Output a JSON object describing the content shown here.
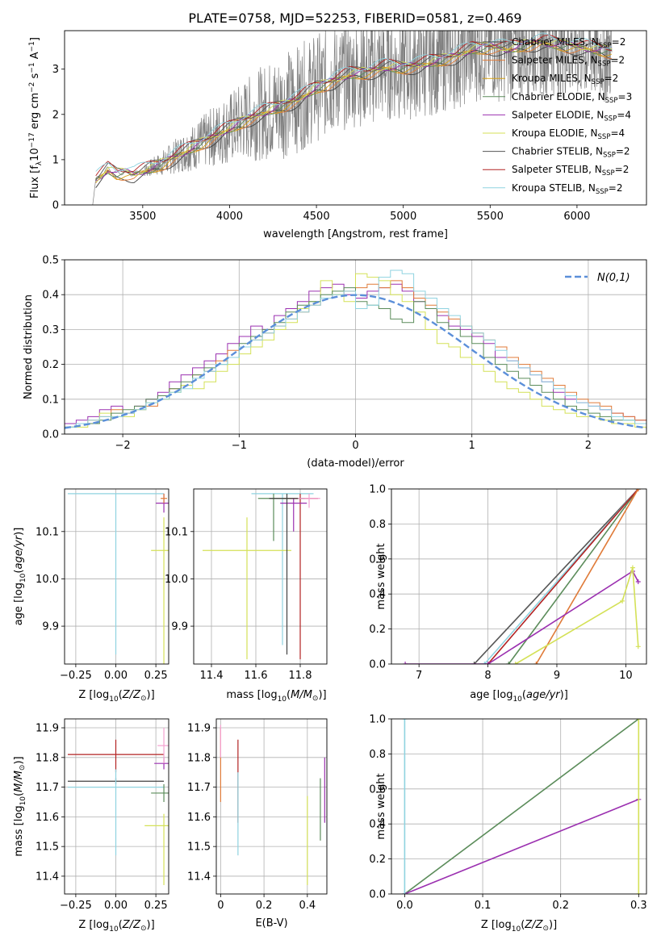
{
  "figure": {
    "title": "PLATE=0758, MJD=52253, FIBERID=0581, z=0.469"
  },
  "chart_data": [
    {
      "type": "line",
      "id": "spectrum",
      "xlabel": "wavelength [Angstrom, rest frame]",
      "ylabel": "Flux [f",
      "xlim": [
        3050,
        6400
      ],
      "ylim": [
        0,
        3.85
      ],
      "xticks": [
        3500,
        4000,
        4500,
        5000,
        5500,
        6000
      ],
      "yticks": [
        0,
        1,
        2,
        3
      ],
      "grid": false,
      "legend_position": "top-right",
      "data_envelope": {
        "x": [
          3210,
          3230,
          3260,
          3300,
          3350,
          3400,
          3450,
          3500,
          3600,
          3700,
          3800,
          3900,
          4000,
          4100,
          4200,
          4300,
          4400,
          4500,
          4600,
          4700,
          4800,
          4900,
          5000,
          5100,
          5200,
          5300,
          5400,
          5500,
          5600,
          5700,
          5800,
          5900,
          6000,
          6100,
          6200
        ],
        "y": [
          0.0,
          0.55,
          0.65,
          0.8,
          0.7,
          0.72,
          0.68,
          0.75,
          0.9,
          1.1,
          1.3,
          1.5,
          1.7,
          1.9,
          2.05,
          2.2,
          2.35,
          2.6,
          2.75,
          2.9,
          2.95,
          3.05,
          3.05,
          3.1,
          3.2,
          3.3,
          3.45,
          3.5,
          3.45,
          3.55,
          3.6,
          3.55,
          3.5,
          3.45,
          3.4
        ]
      },
      "noise_start_x": 3500,
      "models": [
        {
          "name": "Chabrier MILES, N",
          "nssp": "=2",
          "color": "#404040"
        },
        {
          "name": "Salpeter MILES, N",
          "nssp": "=2",
          "color": "#e07b39"
        },
        {
          "name": "Kroupa MILES, N",
          "nssp": "=2",
          "color": "#d4a017"
        },
        {
          "name": "Chabrier ELODIE, N",
          "nssp": "=3",
          "color": "#5b8c5a"
        },
        {
          "name": "Salpeter ELODIE, N",
          "nssp": "=4",
          "color": "#9b30b0"
        },
        {
          "name": "Kroupa ELODIE, N",
          "nssp": "=4",
          "color": "#d4e157"
        },
        {
          "name": "Chabrier STELIB, N",
          "nssp": "=2",
          "color": "#555555"
        },
        {
          "name": "Salpeter STELIB, N",
          "nssp": "=2",
          "color": "#b22222"
        },
        {
          "name": "Kroupa STELIB, N",
          "nssp": "=2",
          "color": "#8fd3e0"
        }
      ],
      "legend_sub": "SSP"
    },
    {
      "type": "line",
      "id": "residuals",
      "xlabel": "(data-model)/error",
      "ylabel": "Normed distribution",
      "xlim": [
        -2.5,
        2.5
      ],
      "ylim": [
        0,
        0.5
      ],
      "xticks": [
        -2,
        -1,
        0,
        1,
        2
      ],
      "yticks": [
        0.0,
        0.1,
        0.2,
        0.3,
        0.4,
        0.5
      ],
      "grid": true,
      "legend_position": "top-right",
      "gaussian_label": "N(0,1)",
      "gaussian_color": "#5b8fd9",
      "bin_centers": [
        -2.45,
        -2.35,
        -2.25,
        -2.15,
        -2.05,
        -1.95,
        -1.85,
        -1.75,
        -1.65,
        -1.55,
        -1.45,
        -1.35,
        -1.25,
        -1.15,
        -1.05,
        -0.95,
        -0.85,
        -0.75,
        -0.65,
        -0.55,
        -0.45,
        -0.35,
        -0.25,
        -0.15,
        -0.05,
        0.05,
        0.15,
        0.25,
        0.35,
        0.45,
        0.55,
        0.65,
        0.75,
        0.85,
        0.95,
        1.05,
        1.15,
        1.25,
        1.35,
        1.45,
        1.55,
        1.65,
        1.75,
        1.85,
        1.95,
        2.05,
        2.15,
        2.25,
        2.35,
        2.45
      ],
      "series": [
        {
          "color": "#9b30b0",
          "values": [
            0.03,
            0.04,
            0.05,
            0.07,
            0.08,
            0.06,
            0.08,
            0.1,
            0.12,
            0.15,
            0.17,
            0.19,
            0.21,
            0.23,
            0.26,
            0.28,
            0.31,
            0.3,
            0.34,
            0.36,
            0.38,
            0.41,
            0.42,
            0.43,
            0.4,
            0.39,
            0.41,
            0.42,
            0.43,
            0.41,
            0.38,
            0.36,
            0.34,
            0.31,
            0.3,
            0.28,
            0.26,
            0.22,
            0.21,
            0.19,
            0.17,
            0.15,
            0.12,
            0.1,
            0.09,
            0.08,
            0.07,
            0.06,
            0.05,
            0.04
          ]
        },
        {
          "color": "#e07b39",
          "values": [
            0.02,
            0.03,
            0.04,
            0.05,
            0.07,
            0.06,
            0.07,
            0.08,
            0.1,
            0.13,
            0.14,
            0.17,
            0.18,
            0.21,
            0.24,
            0.25,
            0.27,
            0.29,
            0.31,
            0.33,
            0.35,
            0.37,
            0.39,
            0.4,
            0.41,
            0.42,
            0.43,
            0.42,
            0.44,
            0.42,
            0.39,
            0.37,
            0.35,
            0.33,
            0.31,
            0.29,
            0.27,
            0.25,
            0.22,
            0.2,
            0.18,
            0.16,
            0.14,
            0.12,
            0.1,
            0.09,
            0.08,
            0.06,
            0.05,
            0.04
          ]
        },
        {
          "color": "#d4e157",
          "values": [
            0.02,
            0.02,
            0.03,
            0.06,
            0.05,
            0.05,
            0.07,
            0.09,
            0.1,
            0.12,
            0.14,
            0.13,
            0.15,
            0.18,
            0.2,
            0.23,
            0.25,
            0.27,
            0.3,
            0.32,
            0.36,
            0.38,
            0.44,
            0.4,
            0.38,
            0.46,
            0.45,
            0.44,
            0.4,
            0.38,
            0.35,
            0.3,
            0.26,
            0.25,
            0.22,
            0.2,
            0.18,
            0.15,
            0.13,
            0.12,
            0.1,
            0.08,
            0.07,
            0.06,
            0.05,
            0.05,
            0.04,
            0.03,
            0.03,
            0.02
          ]
        },
        {
          "color": "#5b8c5a",
          "values": [
            0.02,
            0.03,
            0.03,
            0.04,
            0.06,
            0.07,
            0.08,
            0.1,
            0.11,
            0.13,
            0.15,
            0.17,
            0.19,
            0.2,
            0.22,
            0.26,
            0.28,
            0.3,
            0.32,
            0.35,
            0.37,
            0.38,
            0.4,
            0.41,
            0.42,
            0.38,
            0.37,
            0.36,
            0.33,
            0.32,
            0.38,
            0.36,
            0.32,
            0.3,
            0.28,
            0.26,
            0.22,
            0.2,
            0.18,
            0.16,
            0.14,
            0.12,
            0.1,
            0.08,
            0.07,
            0.06,
            0.05,
            0.04,
            0.04,
            0.03
          ]
        },
        {
          "color": "#8fd3e0",
          "values": [
            0.02,
            0.03,
            0.04,
            0.05,
            0.05,
            0.06,
            0.07,
            0.09,
            0.1,
            0.12,
            0.13,
            0.16,
            0.18,
            0.2,
            0.22,
            0.25,
            0.27,
            0.29,
            0.31,
            0.33,
            0.35,
            0.37,
            0.39,
            0.4,
            0.41,
            0.36,
            0.37,
            0.45,
            0.47,
            0.46,
            0.41,
            0.39,
            0.36,
            0.34,
            0.31,
            0.29,
            0.27,
            0.24,
            0.21,
            0.19,
            0.17,
            0.15,
            0.13,
            0.11,
            0.09,
            0.08,
            0.07,
            0.05,
            0.04,
            0.03
          ]
        }
      ]
    },
    {
      "type": "scatter",
      "id": "age-vs-Z",
      "xlabel": "Z [log",
      "ylabel": "age  [log",
      "xlim": [
        -0.32,
        0.33
      ],
      "ylim": [
        9.82,
        10.19
      ],
      "xticks": [
        -0.25,
        0.0,
        0.25
      ],
      "xticklabels": [
        "−0.25",
        "0.00",
        "0.25"
      ],
      "yticks": [
        9.9,
        10.0,
        10.1
      ],
      "grid": true,
      "points": [
        {
          "x": 0.0,
          "y": 10.18,
          "xerr": 0.3,
          "yerr": [
            0.34,
            0.0
          ],
          "color": "#8fd3e0"
        },
        {
          "x": 0.3,
          "y": 10.16,
          "xerr": 0.05,
          "yerr": [
            0.02,
            0.02
          ],
          "color": "#9b30b0"
        },
        {
          "x": 0.3,
          "y": 10.06,
          "xerr": 0.08,
          "yerr": [
            0.24,
            0.07
          ],
          "color": "#d4e157"
        },
        {
          "x": 0.3,
          "y": 10.17,
          "xerr": 0.02,
          "yerr": [
            0.01,
            0.01
          ],
          "color": "#e07b39"
        }
      ]
    },
    {
      "type": "scatter",
      "id": "age-vs-mass",
      "xlabel": "mass [log",
      "ylabel": "",
      "xlim": [
        11.32,
        11.92
      ],
      "ylim": [
        9.82,
        10.19
      ],
      "xticks": [
        11.4,
        11.6,
        11.8
      ],
      "yticks": [
        9.9,
        10.0,
        10.1
      ],
      "grid": true,
      "points": [
        {
          "x": 11.72,
          "y": 10.18,
          "xerr": 0.14,
          "yerr": [
            0.32,
            0.0
          ],
          "color": "#8fd3e0"
        },
        {
          "x": 11.56,
          "y": 10.06,
          "xerr": 0.2,
          "yerr": [
            0.23,
            0.07
          ],
          "color": "#d4e157"
        },
        {
          "x": 11.8,
          "y": 10.17,
          "xerr": 0.08,
          "yerr": [
            0.34,
            0.01
          ],
          "color": "#b22222"
        },
        {
          "x": 11.77,
          "y": 10.16,
          "xerr": 0.06,
          "yerr": [
            0.06,
            0.01
          ],
          "color": "#9b30b0"
        },
        {
          "x": 11.68,
          "y": 10.17,
          "xerr": 0.07,
          "yerr": [
            0.09,
            0.01
          ],
          "color": "#5b8c5a"
        },
        {
          "x": 11.74,
          "y": 10.17,
          "xerr": 0.08,
          "yerr": [
            0.33,
            0.01
          ],
          "color": "#404040"
        },
        {
          "x": 11.84,
          "y": 10.17,
          "xerr": 0.05,
          "yerr": [
            0.02,
            0.01
          ],
          "color": "#f4a0d0"
        }
      ]
    },
    {
      "type": "line",
      "id": "massweight-vs-age",
      "xlabel": "age  [log",
      "ylabel": "mass weight",
      "xlim": [
        6.6,
        10.3
      ],
      "ylim": [
        0,
        1
      ],
      "xticks": [
        7,
        8,
        9,
        10
      ],
      "yticks": [
        0.0,
        0.2,
        0.4,
        0.6,
        0.8,
        1.0
      ],
      "grid": true,
      "series": [
        {
          "color": "#555555",
          "x": [
            7.8,
            10.18
          ],
          "y": [
            0.0,
            1.0
          ]
        },
        {
          "color": "#8fd3e0",
          "x": [
            7.95,
            10.18
          ],
          "y": [
            0.0,
            1.0
          ]
        },
        {
          "color": "#5b8c5a",
          "x": [
            8.3,
            10.18
          ],
          "y": [
            0.0,
            1.0
          ]
        },
        {
          "color": "#b22222",
          "x": [
            8.0,
            10.18
          ],
          "y": [
            0.0,
            1.0
          ]
        },
        {
          "color": "#e07b39",
          "x": [
            8.7,
            10.18
          ],
          "y": [
            0.0,
            1.0
          ]
        },
        {
          "color": "#9b30b0",
          "x": [
            6.8,
            8.0,
            10.1,
            10.18
          ],
          "y": [
            0.0,
            0.0,
            0.53,
            0.47
          ]
        },
        {
          "color": "#d4e157",
          "x": [
            8.4,
            9.95,
            10.1,
            10.18
          ],
          "y": [
            0.0,
            0.36,
            0.55,
            0.1
          ]
        }
      ]
    },
    {
      "type": "scatter",
      "id": "mass-vs-Z",
      "xlabel": "Z [log",
      "ylabel": "mass [log",
      "xlim": [
        -0.32,
        0.33
      ],
      "ylim": [
        11.34,
        11.93
      ],
      "xticks": [
        -0.25,
        0.0,
        0.25
      ],
      "xticklabels": [
        "−0.25",
        "0.00",
        "0.25"
      ],
      "yticks": [
        11.4,
        11.5,
        11.6,
        11.7,
        11.8,
        11.9
      ],
      "grid": true,
      "points": [
        {
          "x": 0.0,
          "y": 11.81,
          "xerr": 0.3,
          "yerr": [
            0.06,
            0.05
          ],
          "color": "#b22222"
        },
        {
          "x": 0.0,
          "y": 11.72,
          "xerr": 0.3,
          "yerr": [
            0.01,
            0.01
          ],
          "color": "#404040"
        },
        {
          "x": 0.0,
          "y": 11.7,
          "xerr": 0.3,
          "yerr": [
            0.23,
            0.06
          ],
          "color": "#8fd3e0"
        },
        {
          "x": 0.3,
          "y": 11.78,
          "xerr": 0.06,
          "yerr": [
            0.02,
            0.02
          ],
          "color": "#9b30b0"
        },
        {
          "x": 0.3,
          "y": 11.68,
          "xerr": 0.08,
          "yerr": [
            0.03,
            0.03
          ],
          "color": "#5b8c5a"
        },
        {
          "x": 0.3,
          "y": 11.57,
          "xerr": 0.12,
          "yerr": [
            0.2,
            0.04
          ],
          "color": "#d4e157"
        },
        {
          "x": 0.3,
          "y": 11.84,
          "xerr": 0.04,
          "yerr": [
            0.06,
            0.06
          ],
          "color": "#f4a0d0"
        }
      ]
    },
    {
      "type": "scatter",
      "id": "mass-vs-ebv",
      "xlabel": "E(B-V)",
      "ylabel": "",
      "xlim": [
        -0.02,
        0.49
      ],
      "ylim": [
        11.34,
        11.93
      ],
      "xticks": [
        0.0,
        0.2,
        0.4
      ],
      "yticks": [
        11.4,
        11.5,
        11.6,
        11.7,
        11.8,
        11.9
      ],
      "grid": true,
      "points": [
        {
          "x": 0.0,
          "y": 11.8,
          "xerr": 0.0,
          "yerr": [
            0.15,
            0.1
          ],
          "color": "#e07b39"
        },
        {
          "x": 0.0,
          "y": 11.85,
          "xerr": 0.0,
          "yerr": [
            0.05,
            0.06
          ],
          "color": "#f4a0d0"
        },
        {
          "x": 0.08,
          "y": 11.78,
          "xerr": 0.0,
          "yerr": [
            0.2,
            0.08
          ],
          "color": "#b22222"
        },
        {
          "x": 0.08,
          "y": 11.7,
          "xerr": 0.0,
          "yerr": [
            0.23,
            0.05
          ],
          "color": "#8fd3e0"
        },
        {
          "x": 0.4,
          "y": 11.57,
          "xerr": 0.0,
          "yerr": [
            0.2,
            0.1
          ],
          "color": "#d4e157"
        },
        {
          "x": 0.46,
          "y": 11.65,
          "xerr": 0.0,
          "yerr": [
            0.13,
            0.08
          ],
          "color": "#5b8c5a"
        },
        {
          "x": 0.48,
          "y": 11.7,
          "xerr": 0.0,
          "yerr": [
            0.12,
            0.1
          ],
          "color": "#9b30b0"
        }
      ]
    },
    {
      "type": "line",
      "id": "massweight-vs-Z",
      "xlabel": "Z [log",
      "ylabel": "mass weight",
      "xlim": [
        -0.017,
        0.31
      ],
      "ylim": [
        0,
        1
      ],
      "xticks": [
        0.0,
        0.1,
        0.2,
        0.3
      ],
      "xticklabels": [
        "0.0",
        "0.1",
        "0.2",
        "0.3"
      ],
      "yticks": [
        0.0,
        0.2,
        0.4,
        0.6,
        0.8,
        1.0
      ],
      "grid": true,
      "series": [
        {
          "color": "#5b8c5a",
          "x": [
            0.0,
            0.3
          ],
          "y": [
            0.0,
            1.0
          ]
        },
        {
          "color": "#9b30b0",
          "x": [
            0.0,
            0.3
          ],
          "y": [
            0.0,
            0.54
          ]
        },
        {
          "color": "#8fd3e0",
          "x": [
            0.0,
            0.0
          ],
          "y": [
            0.0,
            1.0
          ]
        },
        {
          "color": "#d4e157",
          "x": [
            0.3,
            0.3
          ],
          "y": [
            0.0,
            1.0
          ]
        }
      ]
    }
  ]
}
